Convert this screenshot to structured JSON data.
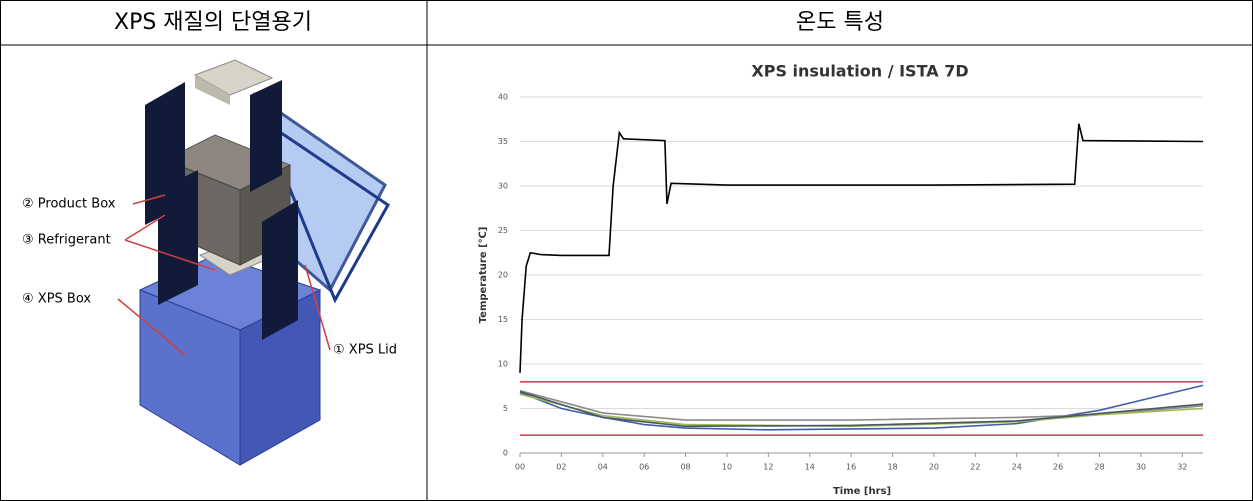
{
  "table": {
    "headers": [
      "XPS 재질의 단열용기",
      "온도 특성"
    ]
  },
  "diagram": {
    "labels": [
      "② Product Box",
      "③ Refrigerant",
      "④ XPS Box",
      "① XPS Lid"
    ]
  },
  "chart_data": {
    "type": "line",
    "title": "XPS insulation  / ISTA 7D",
    "x_label": "Time [hrs]",
    "y_label": "Temperature [℃]",
    "xlim": [
      0,
      33
    ],
    "ylim": [
      0,
      40
    ],
    "xticks": [
      {
        "value": 0,
        "label": "00"
      },
      {
        "value": 2,
        "label": "02"
      },
      {
        "value": 4,
        "label": "04"
      },
      {
        "value": 6,
        "label": "06"
      },
      {
        "value": 8,
        "label": "08"
      },
      10,
      12,
      14,
      16,
      18,
      20,
      22,
      24,
      26,
      28,
      30,
      32
    ],
    "yticks": [
      0,
      5,
      10,
      15,
      20,
      25,
      30,
      35,
      40
    ],
    "grid": true,
    "series": [
      {
        "color": "#000000",
        "x": [
          0,
          0.1,
          0.3,
          0.5,
          1,
          2,
          4.3,
          4.5,
          4.8,
          5,
          7,
          7.1,
          7.3,
          10,
          20,
          26.8,
          27,
          27.2,
          33
        ],
        "values": [
          9,
          15,
          21,
          22.5,
          22.3,
          22.2,
          22.2,
          30,
          36,
          35.3,
          35.1,
          28,
          30.3,
          30.1,
          30.1,
          30.2,
          37,
          35.1,
          35
        ]
      },
      {
        "color": "#e0405a",
        "x": [
          0,
          33
        ],
        "values": [
          8,
          8
        ]
      },
      {
        "color": "#e0405a",
        "x": [
          0,
          33
        ],
        "values": [
          2,
          2
        ]
      },
      {
        "color": "#3f5fa8",
        "x": [
          0,
          2,
          4,
          6,
          8,
          12,
          20,
          24,
          28,
          33
        ],
        "values": [
          6.8,
          5,
          4,
          3.2,
          2.8,
          2.6,
          2.8,
          3.3,
          4.8,
          7.6
        ]
      },
      {
        "color": "#8c8c8c",
        "x": [
          0,
          4,
          8,
          16,
          24,
          28,
          33
        ],
        "values": [
          7,
          4.5,
          3.7,
          3.7,
          4,
          4.3,
          5.3
        ]
      },
      {
        "color": "#9bbb59",
        "x": [
          0,
          4,
          8,
          16,
          24,
          28,
          33
        ],
        "values": [
          6.6,
          4.2,
          3.2,
          3,
          3.5,
          4.3,
          5
        ]
      },
      {
        "color": "#4d5560",
        "x": [
          0,
          4,
          8,
          16,
          24,
          33
        ],
        "values": [
          6.9,
          4,
          3,
          3.1,
          3.6,
          5.5
        ]
      }
    ]
  }
}
